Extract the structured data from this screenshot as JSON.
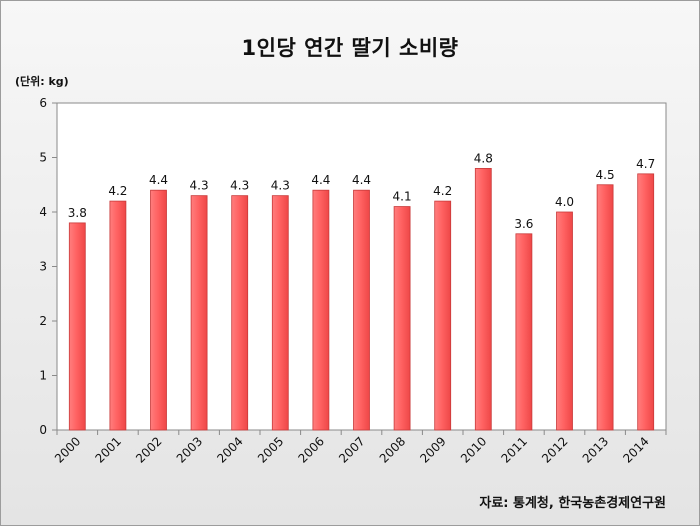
{
  "chart_data": {
    "type": "bar",
    "title": "1인당 연간 딸기 소비량",
    "unit_label": "(단위: kg)",
    "source": "자료: 통계청, 한국농촌경제연구원",
    "categories": [
      "2000",
      "2001",
      "2002",
      "2003",
      "2004",
      "2005",
      "2006",
      "2007",
      "2008",
      "2009",
      "2010",
      "2011",
      "2012",
      "2013",
      "2014"
    ],
    "values": [
      3.8,
      4.2,
      4.4,
      4.3,
      4.3,
      4.3,
      4.4,
      4.4,
      4.1,
      4.2,
      4.8,
      3.6,
      4.0,
      4.5,
      4.7
    ],
    "data_labels": [
      "3.8",
      "4.2",
      "4.4",
      "4.3",
      "4.3",
      "4.3",
      "4.4",
      "4.4",
      "4.1",
      "4.2",
      "4.8",
      "3.6",
      "4.0",
      "4.5",
      "4.7"
    ],
    "yticks": [
      "0",
      "1",
      "2",
      "3",
      "4",
      "5",
      "6"
    ],
    "ylim": [
      0,
      6
    ],
    "xlabel": "",
    "ylabel": "",
    "grid": false,
    "legend": "none",
    "bar_color": "#ff5b5b",
    "bar_edge_color": "#c83a3a"
  }
}
